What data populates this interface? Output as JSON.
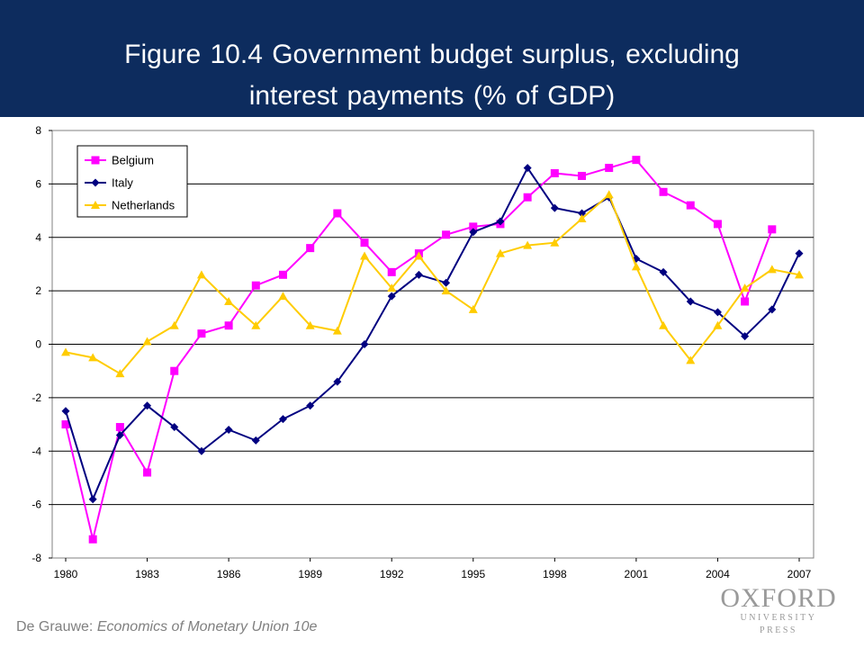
{
  "header": {
    "title_line1": "Figure 10.4 Government budget surplus, excluding",
    "title_line2": "interest payments (% of GDP)",
    "background": "#0d2c5e"
  },
  "footer": {
    "author": "De Grauwe:",
    "book": "Economics of Monetary Union 10e"
  },
  "logo": {
    "main": "OXFORD",
    "sub": "UNIVERSITY PRESS"
  },
  "chart_data": {
    "type": "line",
    "title": "",
    "xlabel": "",
    "ylabel": "",
    "x": [
      1980,
      1981,
      1982,
      1983,
      1984,
      1985,
      1986,
      1987,
      1988,
      1989,
      1990,
      1991,
      1992,
      1993,
      1994,
      1995,
      1996,
      1997,
      1998,
      1999,
      2000,
      2001,
      2002,
      2003,
      2004,
      2005,
      2006,
      2007
    ],
    "x_tick_labels": [
      "1980",
      "1983",
      "1986",
      "1989",
      "1992",
      "1995",
      "1998",
      "2001",
      "2004",
      "2007"
    ],
    "ylim": [
      -8,
      8
    ],
    "y_ticks": [
      -8,
      -6,
      -4,
      -2,
      0,
      2,
      4,
      6,
      8
    ],
    "grid": "horizontal",
    "legend_position": "top-left",
    "series": [
      {
        "name": "Belgium",
        "color": "#ff00ff",
        "marker": "square",
        "values": [
          -3.0,
          -7.3,
          -3.1,
          -4.8,
          -1.0,
          0.4,
          0.7,
          2.2,
          2.6,
          3.6,
          4.9,
          3.8,
          2.7,
          3.4,
          4.1,
          4.4,
          4.5,
          5.5,
          6.4,
          6.3,
          6.6,
          6.9,
          5.7,
          5.2,
          4.5,
          1.6,
          4.3,
          null
        ]
      },
      {
        "name": "Italy",
        "color": "#000080",
        "marker": "diamond",
        "values": [
          -2.5,
          -5.8,
          -3.4,
          -2.3,
          -3.1,
          -4.0,
          -3.2,
          -3.6,
          -2.8,
          -2.3,
          -1.4,
          0.0,
          1.8,
          2.6,
          2.3,
          4.2,
          4.6,
          6.6,
          5.1,
          4.9,
          5.5,
          3.2,
          2.7,
          1.6,
          1.2,
          0.3,
          1.3,
          3.4
        ]
      },
      {
        "name": "Netherlands",
        "color": "#ffcc00",
        "marker": "triangle",
        "values": [
          -0.3,
          -0.5,
          -1.1,
          0.1,
          0.7,
          2.6,
          1.6,
          0.7,
          1.8,
          0.7,
          0.5,
          3.3,
          2.1,
          3.3,
          2.0,
          1.3,
          3.4,
          3.7,
          3.8,
          4.7,
          5.6,
          2.9,
          0.7,
          -0.6,
          0.7,
          2.1,
          2.8,
          2.6
        ]
      }
    ]
  }
}
